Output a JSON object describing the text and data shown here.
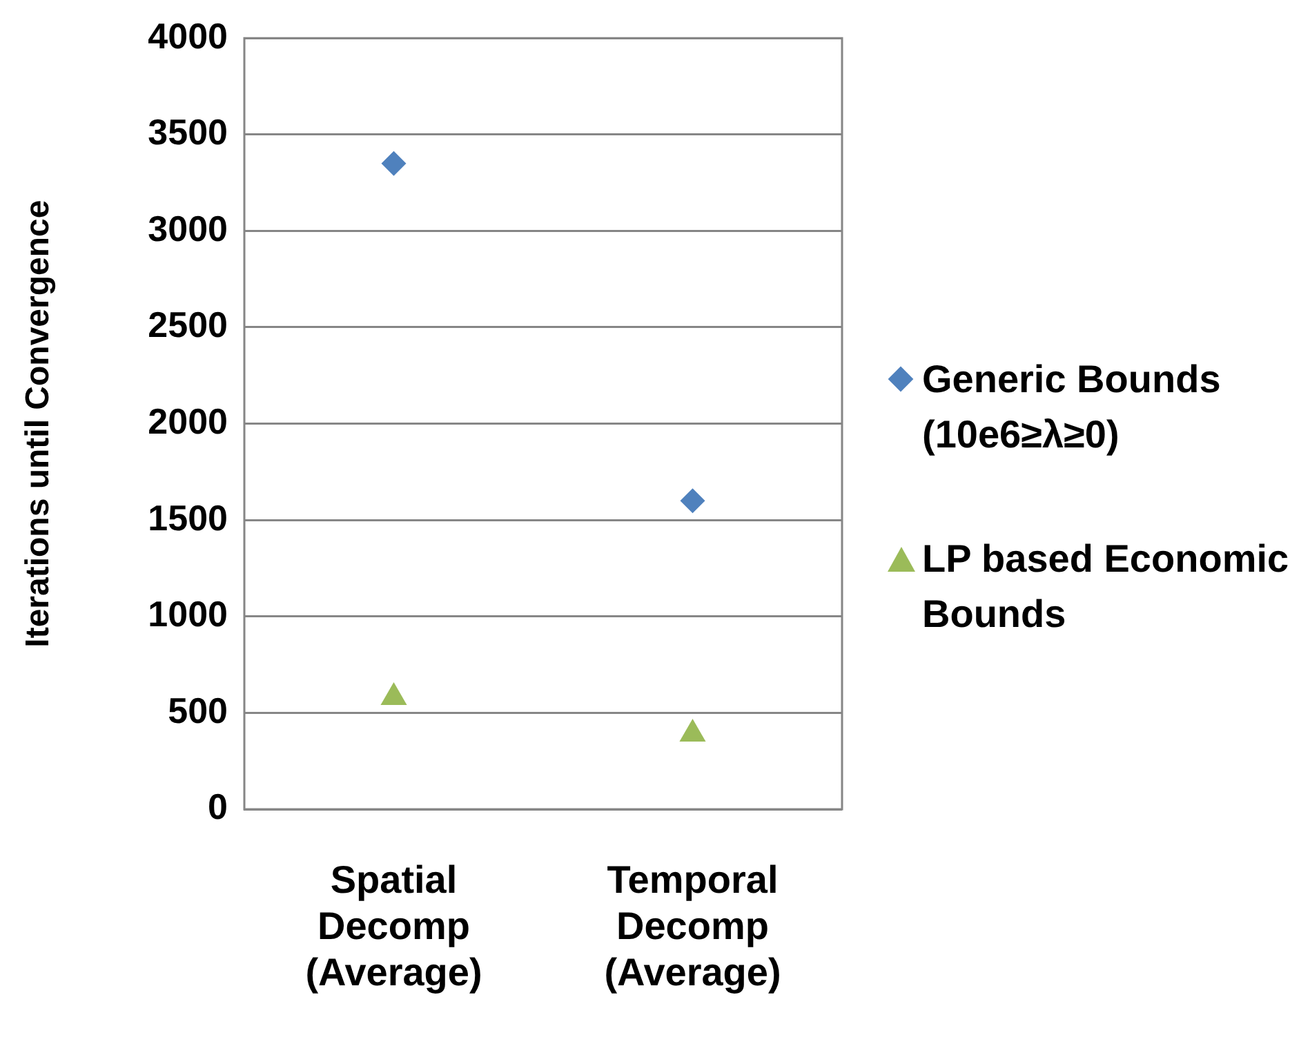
{
  "chart_data": {
    "type": "scatter",
    "ylabel": "Iterations until Convergence",
    "categories": [
      "Spatial Decomp (Average)",
      "Temporal Decomp (Average)"
    ],
    "ylim": [
      0,
      4000
    ],
    "yticks": [
      0,
      500,
      1000,
      1500,
      2000,
      2500,
      3000,
      3500,
      4000
    ],
    "grid": "y",
    "legend": "right",
    "series": [
      {
        "name": "Generic Bounds (10e6≥λ≥0)",
        "color": "#4f81bd",
        "marker": "diamond",
        "values": [
          3350,
          1600
        ]
      },
      {
        "name": "LP based Economic Bounds",
        "color": "#9bbb59",
        "marker": "triangle",
        "values": [
          580,
          390
        ]
      }
    ]
  }
}
